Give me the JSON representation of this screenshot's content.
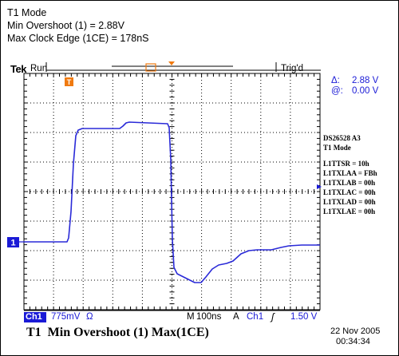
{
  "caption": {
    "line1": "T1 Mode",
    "line2": "Min Overshoot (1) = 2.88V",
    "line3": "Max Clock Edge (1CE) = 178nS"
  },
  "header": {
    "brand": "Tek",
    "run_state": "Run",
    "trigger_status": "Trig'd",
    "trigger_marker": "T"
  },
  "cursor_readout": {
    "delta_label": "Δ:",
    "delta_value": "2.88 V",
    "at_label": "@:",
    "at_value": "0.00 V"
  },
  "device_info": {
    "device": "DS26528 A3",
    "mode": "T1 Mode",
    "registers": [
      "L1TTSR = 10h",
      "L1TXLAA = FBh",
      "L1TXLAB = 00h",
      "L1TXLAC = 00h",
      "L1TXLAD = 00h",
      "L1TXLAE = 00h"
    ]
  },
  "channel_marker": "1",
  "status_bar": {
    "channel_tag": "Ch1",
    "vertical_scale": "775mV",
    "ohm_symbol": "Ω",
    "timebase_tag": "M",
    "timebase": "100ns",
    "trigger_mode": "A",
    "trigger_channel": "Ch1",
    "trigger_slope": "ʃ",
    "trigger_level": "1.50 V"
  },
  "footer": {
    "label": "T1  Min Overshoot (1) Max(1CE)",
    "date": "22 Nov 2005",
    "time": "00:34:34"
  },
  "colors": {
    "trace": "#2a2ad8",
    "marker_orange": "#f07a10",
    "text_blue": "#1a1ad6",
    "grid": "#000000"
  }
}
